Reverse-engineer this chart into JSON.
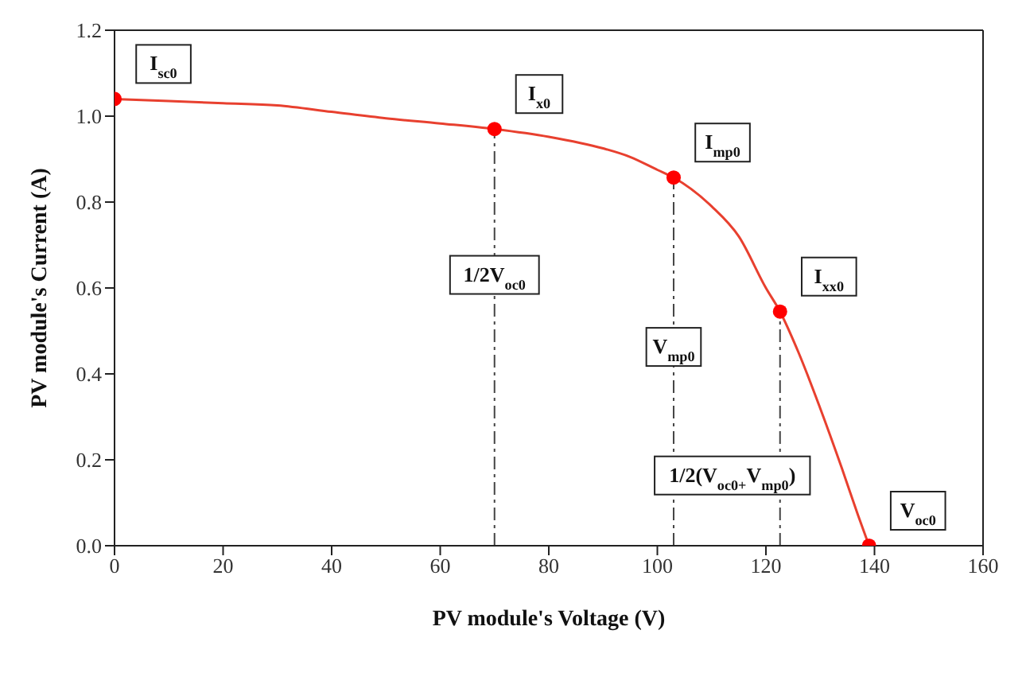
{
  "chart_data": {
    "type": "line",
    "xlabel": "PV module's Voltage (V)",
    "ylabel": "PV module's Current (A)",
    "xlim": [
      0,
      160
    ],
    "xticks": [
      0,
      20,
      40,
      60,
      80,
      100,
      120,
      140,
      160
    ],
    "ylim": [
      0,
      1.2
    ],
    "yticks": [
      {
        "value": 0,
        "label": "0.0"
      },
      {
        "value": 0.2,
        "label": "0.2"
      },
      {
        "value": 0.4,
        "label": "0.4"
      },
      {
        "value": 0.6,
        "label": "0.6"
      },
      {
        "value": 0.8,
        "label": "0.8"
      },
      {
        "value": 1,
        "label": "1.0"
      },
      {
        "value": 1.2,
        "label": "1.2"
      }
    ],
    "series": [
      {
        "color": "#e8402f",
        "marker": "none",
        "x": [
          0,
          10,
          20,
          30,
          40,
          50,
          60,
          70,
          80,
          90,
          95,
          100,
          103,
          110,
          115,
          120,
          122.6,
          126,
          130,
          134,
          137,
          139
        ],
        "values": [
          1.04,
          1.035,
          1.03,
          1.025,
          1.01,
          0.995,
          0.983,
          0.97,
          0.952,
          0.925,
          0.905,
          0.875,
          0.857,
          0.79,
          0.72,
          0.6,
          0.545,
          0.45,
          0.32,
          0.18,
          0.07,
          0
        ]
      },
      {
        "type": "scatter",
        "color": "#ff0000",
        "marker": "circle",
        "x": [
          0,
          70,
          103,
          122.6,
          139
        ],
        "values": [
          1.04,
          0.97,
          0.857,
          0.545,
          0
        ]
      }
    ],
    "annotations": [
      {
        "text": "I$_{sc0}$",
        "x": 0,
        "y": 1.04
      },
      {
        "text": "I$_{x0}$",
        "x": 70,
        "y": 0.97
      },
      {
        "text": "I$_{mp0}$",
        "x": 103,
        "y": 0.857
      },
      {
        "text": "I$_{xx0}$",
        "x": 122.6,
        "y": 0.545
      },
      {
        "text": "V$_{oc0}$",
        "x": 139,
        "y": 0
      }
    ],
    "ref_lines": [
      {
        "axis": "x",
        "value": 70,
        "label": "1/2V$_{oc0}$",
        "color": "#444444",
        "line_style": "dashdot"
      },
      {
        "axis": "x",
        "value": 103,
        "label": "V$_{mp0}$",
        "color": "#444444",
        "line_style": "dashdot"
      },
      {
        "axis": "x",
        "value": 122.6,
        "label": "1/2(V$_{oc0+}$V$_{mp0}$)",
        "color": "#444444",
        "line_style": "dashdot"
      }
    ]
  }
}
